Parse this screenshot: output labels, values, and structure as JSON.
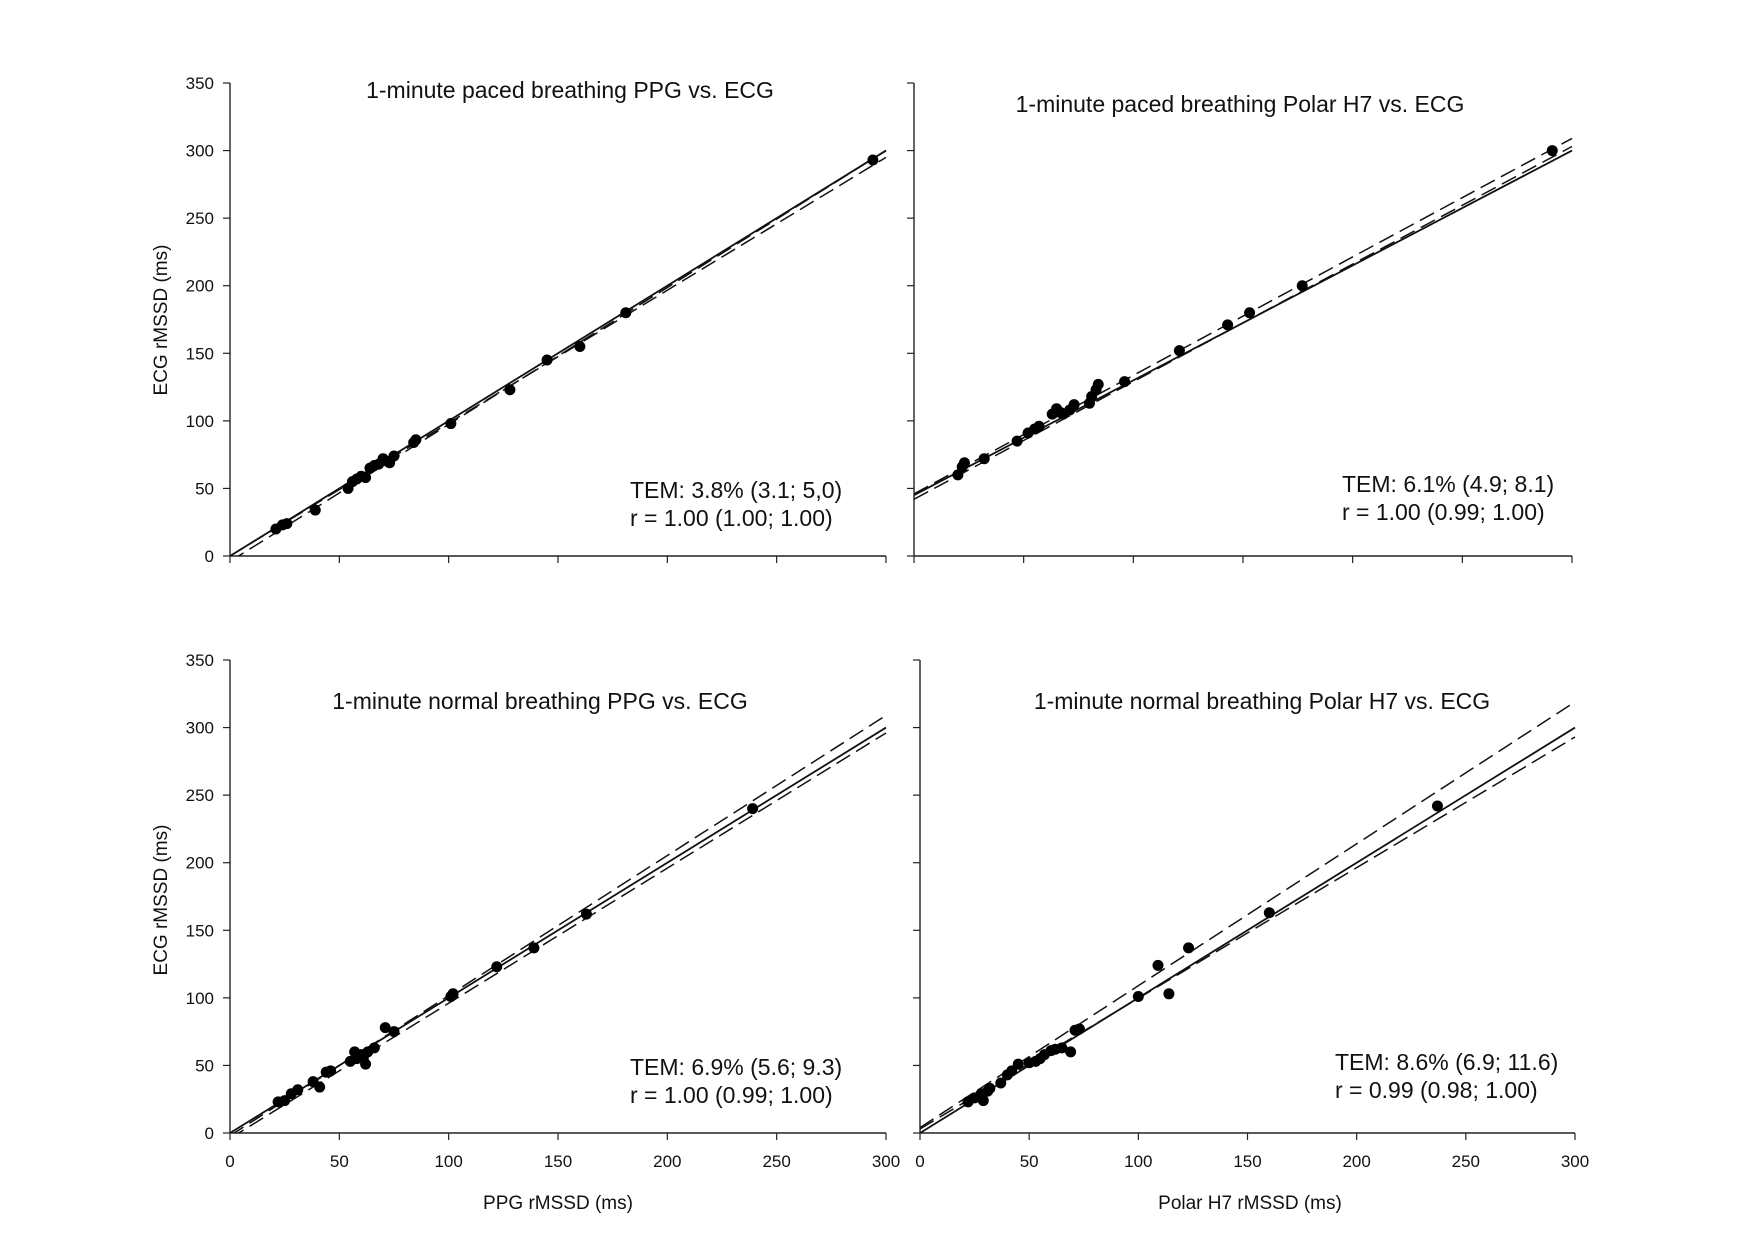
{
  "figure": {
    "x_axis_titles": [
      "PPG rMSSD (ms)",
      "Polar H7 rMSSD (ms)"
    ],
    "y_axis_title": "ECG rMSSD (ms)",
    "x_tick_labels": [
      "0",
      "50",
      "100",
      "150",
      "200",
      "250",
      "300"
    ],
    "y_tick_labels": [
      "0",
      "50",
      "100",
      "150",
      "200",
      "250",
      "300",
      "350"
    ]
  },
  "chart_data": [
    {
      "type": "scatter",
      "title": "1-minute paced breathing PPG vs. ECG",
      "xlabel": "",
      "ylabel": "ECG rMSSD (ms)",
      "xlim": [
        0,
        300
      ],
      "ylim": [
        0,
        350
      ],
      "grid": false,
      "stats": {
        "tem": "TEM: 3.8% (3.1; 5,0)",
        "r": "r = 1.00 (1.00; 1.00)"
      },
      "points": [
        [
          21,
          20
        ],
        [
          24,
          23
        ],
        [
          26,
          24
        ],
        [
          39,
          34
        ],
        [
          54,
          50
        ],
        [
          56,
          55
        ],
        [
          58,
          57
        ],
        [
          60,
          59
        ],
        [
          62,
          58
        ],
        [
          64,
          65
        ],
        [
          66,
          67
        ],
        [
          68,
          68
        ],
        [
          70,
          72
        ],
        [
          72,
          70
        ],
        [
          73,
          69
        ],
        [
          75,
          74
        ],
        [
          84,
          84
        ],
        [
          85,
          86
        ],
        [
          101,
          98
        ],
        [
          128,
          123
        ],
        [
          145,
          145
        ],
        [
          160,
          155
        ],
        [
          181,
          180
        ],
        [
          294,
          293
        ]
      ],
      "lines": [
        {
          "style": "solid",
          "x": [
            0,
            300
          ],
          "y": [
            0,
            300
          ]
        },
        {
          "style": "dashed",
          "x": [
            0,
            300
          ],
          "y": [
            -4,
            300
          ]
        },
        {
          "style": "dashed",
          "x": [
            0,
            300
          ],
          "y": [
            0,
            295
          ]
        }
      ]
    },
    {
      "type": "scatter",
      "title": "1-minute paced breathing Polar H7 vs. ECG",
      "xlabel": "",
      "ylabel": "",
      "xlim": [
        0,
        300
      ],
      "ylim": [
        0,
        350
      ],
      "grid": false,
      "stats": {
        "tem": "TEM: 6.1% (4.9; 8.1)",
        "r": "r = 1.00 (0.99; 1.00)"
      },
      "points": [
        [
          20,
          60
        ],
        [
          22,
          66
        ],
        [
          23,
          69
        ],
        [
          32,
          72
        ],
        [
          47,
          85
        ],
        [
          52,
          91
        ],
        [
          55,
          94
        ],
        [
          57,
          96
        ],
        [
          63,
          105
        ],
        [
          65,
          109
        ],
        [
          67,
          106
        ],
        [
          68,
          105
        ],
        [
          71,
          108
        ],
        [
          73,
          112
        ],
        [
          80,
          113
        ],
        [
          81,
          118
        ],
        [
          83,
          123
        ],
        [
          84,
          127
        ],
        [
          96,
          129
        ],
        [
          121,
          152
        ],
        [
          143,
          171
        ],
        [
          153,
          180
        ],
        [
          177,
          200
        ],
        [
          291,
          300
        ]
      ],
      "lines": [
        {
          "style": "solid",
          "x": [
            0,
            300
          ],
          "y": [
            45,
            300
          ]
        },
        {
          "style": "dashed",
          "x": [
            0,
            300
          ],
          "y": [
            42,
            303
          ]
        },
        {
          "style": "dashed",
          "x": [
            0,
            300
          ],
          "y": [
            46,
            309
          ]
        }
      ]
    },
    {
      "type": "scatter",
      "title": "1-minute normal breathing PPG vs. ECG",
      "xlabel": "PPG rMSSD (ms)",
      "ylabel": "ECG rMSSD (ms)",
      "xlim": [
        0,
        300
      ],
      "ylim": [
        0,
        350
      ],
      "grid": false,
      "stats": {
        "tem": "TEM: 6.9% (5.6; 9.3)",
        "r": "r = 1.00 (0.99; 1.00)"
      },
      "points": [
        [
          22,
          23
        ],
        [
          25,
          24
        ],
        [
          28,
          29
        ],
        [
          31,
          32
        ],
        [
          38,
          38
        ],
        [
          41,
          34
        ],
        [
          44,
          45
        ],
        [
          46,
          46
        ],
        [
          55,
          53
        ],
        [
          57,
          60
        ],
        [
          58,
          55
        ],
        [
          60,
          58
        ],
        [
          61,
          56
        ],
        [
          62,
          51
        ],
        [
          63,
          60
        ],
        [
          66,
          63
        ],
        [
          71,
          78
        ],
        [
          75,
          75
        ],
        [
          101,
          101
        ],
        [
          102,
          103
        ],
        [
          122,
          123
        ],
        [
          139,
          137
        ],
        [
          163,
          162
        ],
        [
          239,
          240
        ]
      ],
      "lines": [
        {
          "style": "solid",
          "x": [
            0,
            300
          ],
          "y": [
            0,
            300
          ]
        },
        {
          "style": "dashed",
          "x": [
            0,
            300
          ],
          "y": [
            -4,
            296
          ]
        },
        {
          "style": "dashed",
          "x": [
            0,
            300
          ],
          "y": [
            -2,
            309
          ]
        }
      ]
    },
    {
      "type": "scatter",
      "title": "1-minute normal breathing Polar H7 vs. ECG",
      "xlabel": "Polar H7 rMSSD (ms)",
      "ylabel": "",
      "xlim": [
        0,
        300
      ],
      "ylim": [
        0,
        350
      ],
      "grid": false,
      "stats": {
        "tem": "TEM: 8.6% (6.9; 11.6)",
        "r": "r = 0.99 (0.98; 1.00)"
      },
      "points": [
        [
          22,
          23
        ],
        [
          25,
          26
        ],
        [
          28,
          29
        ],
        [
          29,
          24
        ],
        [
          31,
          31
        ],
        [
          32,
          33
        ],
        [
          37,
          37
        ],
        [
          40,
          43
        ],
        [
          42,
          46
        ],
        [
          45,
          51
        ],
        [
          50,
          52
        ],
        [
          53,
          53
        ],
        [
          55,
          55
        ],
        [
          57,
          58
        ],
        [
          60,
          61
        ],
        [
          62,
          62
        ],
        [
          65,
          63
        ],
        [
          69,
          60
        ],
        [
          71,
          76
        ],
        [
          73,
          77
        ],
        [
          100,
          101
        ],
        [
          109,
          124
        ],
        [
          114,
          103
        ],
        [
          123,
          137
        ],
        [
          160,
          163
        ],
        [
          237,
          242
        ]
      ],
      "lines": [
        {
          "style": "solid",
          "x": [
            0,
            300
          ],
          "y": [
            0,
            300
          ]
        },
        {
          "style": "dashed",
          "x": [
            0,
            300
          ],
          "y": [
            3,
            293
          ]
        },
        {
          "style": "dashed",
          "x": [
            0,
            300
          ],
          "y": [
            4,
            319
          ]
        }
      ]
    }
  ]
}
